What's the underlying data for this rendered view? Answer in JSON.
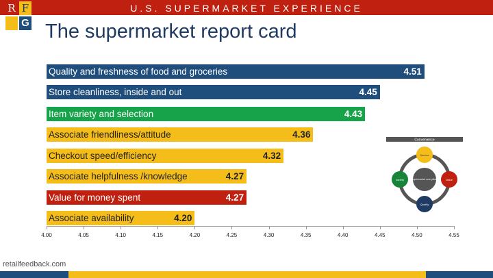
{
  "header": {
    "banner": "U.S. SUPERMARKET EXPERIENCE",
    "title": "The supermarket report card",
    "logo_letters": [
      "R",
      "F",
      "G"
    ]
  },
  "colors": {
    "blue": "#1f4e7d",
    "green": "#17a34a",
    "yellow": "#f5bd1a",
    "red": "#c0200f"
  },
  "chart_data": {
    "type": "bar",
    "orientation": "horizontal",
    "title": "The supermarket report card",
    "categories": [
      "Quality and freshness of food and groceries",
      "Store cleanliness, inside and out",
      "Item variety and selection",
      "Associate friendliness/attitude",
      "Checkout speed/efficiency",
      "Associate helpfulness /knowledge",
      "Value for money spent",
      "Associate availability"
    ],
    "values": [
      4.51,
      4.45,
      4.43,
      4.36,
      4.32,
      4.27,
      4.27,
      4.2
    ],
    "value_labels": [
      "4.51",
      "4.45",
      "4.43",
      "4.36",
      "4.32",
      "4.27",
      "4.27",
      "4.20"
    ],
    "bar_colors": [
      "#1f4e7d",
      "#1f4e7d",
      "#17a34a",
      "#f5bd1a",
      "#f5bd1a",
      "#f5bd1a",
      "#c0200f",
      "#f5bd1a"
    ],
    "xlim": [
      4.0,
      4.55
    ],
    "xticks": [
      "4.00",
      "4.05",
      "4.10",
      "4.15",
      "4.20",
      "4.25",
      "4.30",
      "4.35",
      "4.40",
      "4.45",
      "4.50",
      "4.55"
    ]
  },
  "diagram": {
    "header": "Convenience",
    "center": "Supermarket core pillars",
    "nodes": [
      "Service",
      "Value",
      "Quality",
      "Variety"
    ]
  },
  "footer": {
    "site": "retailfeedback.com"
  }
}
